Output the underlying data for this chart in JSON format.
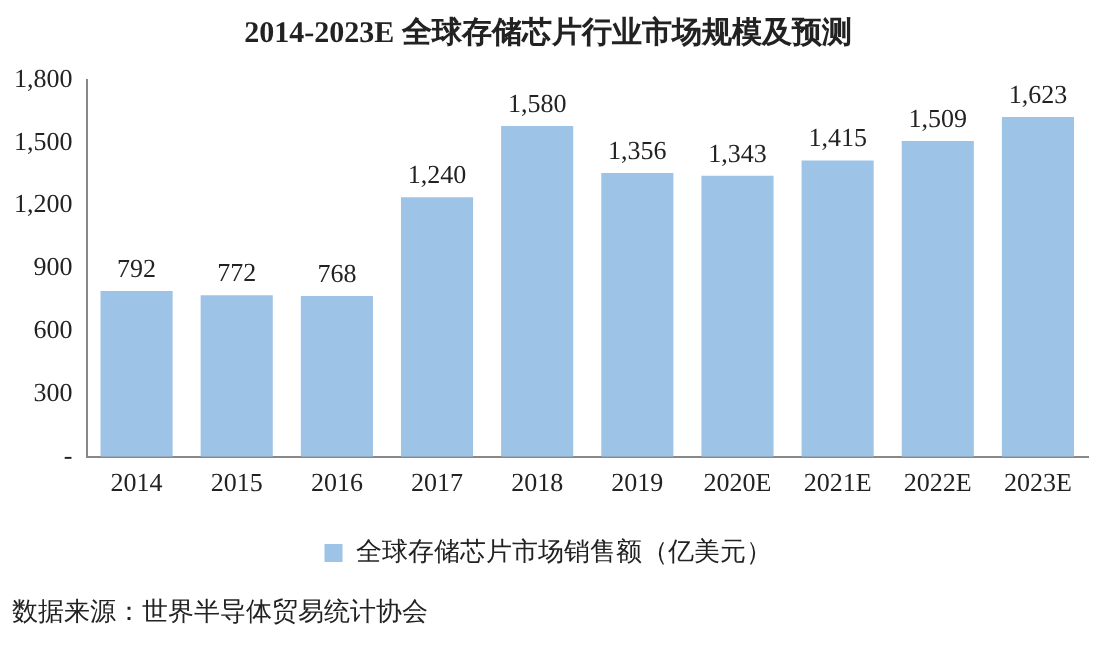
{
  "chart_data": {
    "type": "bar",
    "title": "2014-2023E 全球存储芯片行业市场规模及预测",
    "categories": [
      "2014",
      "2015",
      "2016",
      "2017",
      "2018",
      "2019",
      "2020E",
      "2021E",
      "2022E",
      "2023E"
    ],
    "series": [
      {
        "name": "全球存储芯片市场销售额（亿美元）",
        "color": "#9dc3e6",
        "values": [
          792,
          772,
          768,
          1240,
          1580,
          1356,
          1343,
          1415,
          1509,
          1623
        ],
        "value_labels": [
          "792",
          "772",
          "768",
          "1,240",
          "1,580",
          "1,356",
          "1,343",
          "1,415",
          "1,509",
          "1,623"
        ]
      }
    ],
    "ylim": [
      0,
      1800
    ],
    "yticks": [
      {
        "value": 0,
        "label": "-"
      },
      {
        "value": 300,
        "label": "300"
      },
      {
        "value": 600,
        "label": "600"
      },
      {
        "value": 900,
        "label": "900"
      },
      {
        "value": 1200,
        "label": "1,200"
      },
      {
        "value": 1500,
        "label": "1,500"
      },
      {
        "value": 1800,
        "label": "1,800"
      }
    ],
    "grid": false,
    "legend": "bottom",
    "annotations": [
      "数据来源：世界半导体贸易统计协会"
    ]
  }
}
